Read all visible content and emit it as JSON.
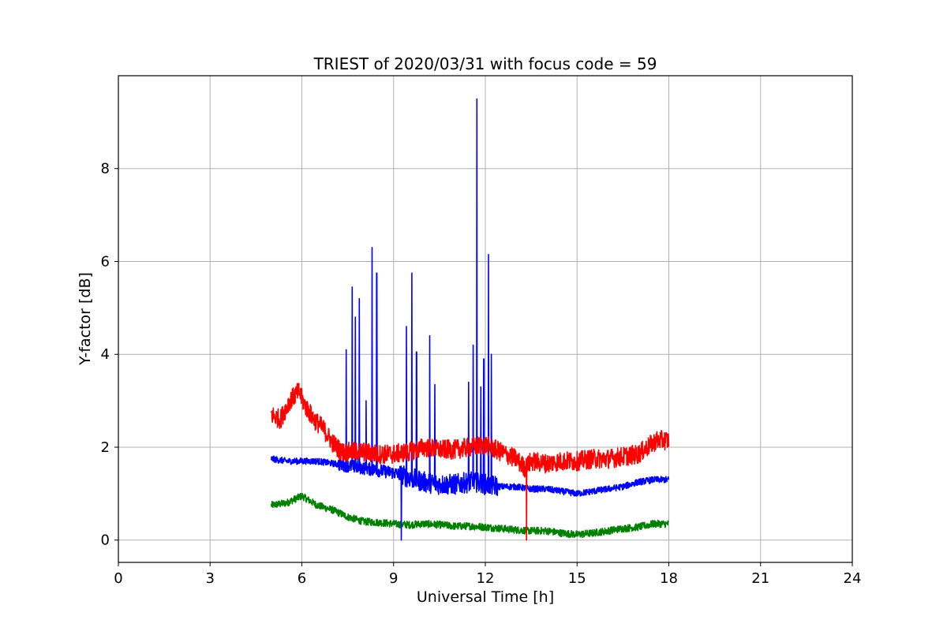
{
  "chart_data": {
    "type": "line",
    "title": "TRIEST of 2020/03/31 with focus code = 59",
    "xlabel": "Universal Time [h]",
    "ylabel": "Y-factor [dB]",
    "xlim": [
      0,
      24
    ],
    "ylim": [
      -0.48,
      10
    ],
    "xticks": [
      0,
      3,
      6,
      9,
      12,
      15,
      18,
      21,
      24
    ],
    "yticks": [
      0,
      2,
      4,
      6,
      8
    ],
    "grid": true,
    "legend": "none",
    "series": [
      {
        "color": "#ff0000",
        "x": [
          5.0,
          5.3,
          5.6,
          5.9,
          6.1,
          6.4,
          6.7,
          7.0,
          7.3,
          7.6,
          8.0,
          8.5,
          9.0,
          9.5,
          10.0,
          10.5,
          11.0,
          11.5,
          12.0,
          12.5,
          13.0,
          13.3,
          13.5,
          14.0,
          14.5,
          15.0,
          15.5,
          16.0,
          16.5,
          17.0,
          17.3,
          17.6,
          18.0
        ],
        "y": [
          2.7,
          2.6,
          3.0,
          3.2,
          2.9,
          2.6,
          2.4,
          2.1,
          1.9,
          1.9,
          1.9,
          1.85,
          1.85,
          1.9,
          2.0,
          1.95,
          1.95,
          2.0,
          2.05,
          1.9,
          1.75,
          1.55,
          1.7,
          1.65,
          1.7,
          1.7,
          1.75,
          1.75,
          1.8,
          1.85,
          2.0,
          2.15,
          2.15
        ]
      },
      {
        "color": "#0000ff",
        "x": [
          5.0,
          5.5,
          6.0,
          6.5,
          7.0,
          7.5,
          8.0,
          8.5,
          9.0,
          9.5,
          10.0,
          10.5,
          11.0,
          11.5,
          12.0,
          12.5,
          13.0,
          13.5,
          14.0,
          14.5,
          15.0,
          15.5,
          16.0,
          16.5,
          17.0,
          17.5,
          18.0
        ],
        "y": [
          1.75,
          1.7,
          1.7,
          1.7,
          1.65,
          1.6,
          1.55,
          1.5,
          1.45,
          1.35,
          1.25,
          1.2,
          1.2,
          1.25,
          1.2,
          1.15,
          1.15,
          1.1,
          1.1,
          1.05,
          1.0,
          1.05,
          1.1,
          1.15,
          1.25,
          1.3,
          1.3
        ]
      },
      {
        "color": "#008000",
        "x": [
          5.0,
          5.5,
          6.0,
          6.5,
          7.0,
          7.5,
          8.0,
          8.5,
          9.0,
          9.5,
          10.0,
          10.5,
          11.0,
          11.5,
          12.0,
          12.5,
          13.0,
          13.5,
          14.0,
          14.5,
          15.0,
          15.5,
          16.0,
          16.5,
          17.0,
          17.5,
          18.0
        ],
        "y": [
          0.75,
          0.8,
          0.95,
          0.75,
          0.65,
          0.5,
          0.4,
          0.38,
          0.35,
          0.33,
          0.35,
          0.33,
          0.3,
          0.3,
          0.28,
          0.25,
          0.22,
          0.2,
          0.2,
          0.15,
          0.12,
          0.15,
          0.2,
          0.25,
          0.28,
          0.35,
          0.35
        ]
      }
    ],
    "spikes": [
      {
        "series": 1,
        "x": 7.45,
        "y": 4.1
      },
      {
        "series": 1,
        "x": 7.65,
        "y": 5.45
      },
      {
        "series": 1,
        "x": 7.75,
        "y": 4.8
      },
      {
        "series": 1,
        "x": 7.88,
        "y": 5.2
      },
      {
        "series": 1,
        "x": 8.1,
        "y": 3.0
      },
      {
        "series": 1,
        "x": 8.3,
        "y": 6.3
      },
      {
        "series": 1,
        "x": 8.45,
        "y": 5.75
      },
      {
        "series": 1,
        "x": 9.25,
        "y": 0.0
      },
      {
        "series": 1,
        "x": 9.42,
        "y": 4.6
      },
      {
        "series": 1,
        "x": 9.6,
        "y": 5.75
      },
      {
        "series": 1,
        "x": 9.75,
        "y": 4.05
      },
      {
        "series": 1,
        "x": 10.18,
        "y": 4.4
      },
      {
        "series": 1,
        "x": 10.35,
        "y": 3.35
      },
      {
        "series": 1,
        "x": 11.45,
        "y": 3.4
      },
      {
        "series": 1,
        "x": 11.6,
        "y": 4.2
      },
      {
        "series": 1,
        "x": 11.72,
        "y": 9.5
      },
      {
        "series": 1,
        "x": 11.85,
        "y": 3.3
      },
      {
        "series": 1,
        "x": 11.95,
        "y": 3.9
      },
      {
        "series": 1,
        "x": 12.1,
        "y": 6.15
      },
      {
        "series": 1,
        "x": 12.2,
        "y": 4.0
      },
      {
        "series": 0,
        "x": 13.35,
        "y": 0.0
      }
    ]
  }
}
